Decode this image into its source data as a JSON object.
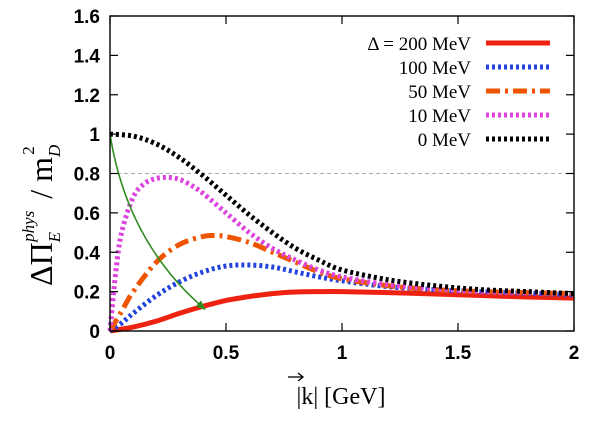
{
  "chart_data": {
    "type": "line",
    "xlabel": "|k| [GeV]",
    "ylabel": "ΔΠ_E^phys / m_D^2",
    "xlim": [
      0,
      2
    ],
    "ylim": [
      0,
      1.6
    ],
    "x_ticks": [
      "0",
      "0.5",
      "1",
      "1.5",
      "2"
    ],
    "y_ticks": [
      "0",
      "0.2",
      "0.4",
      "0.6",
      "0.8",
      "1",
      "1.2",
      "1.4",
      "1.6"
    ],
    "legend_position": "top-right",
    "reference_line": {
      "y": 0.8,
      "style": "dashed",
      "color": "#aaaaaa"
    },
    "arrow": {
      "from": [
        0.0,
        1.0
      ],
      "to": [
        0.41,
        0.11
      ],
      "color": "#2e8b1f"
    },
    "series": [
      {
        "name": "Δ = 200 MeV",
        "color": "#ee2211",
        "style": "solid",
        "x": [
          0,
          0.1,
          0.2,
          0.3,
          0.4,
          0.5,
          0.6,
          0.7,
          0.8,
          0.9,
          1.0,
          1.2,
          1.4,
          1.6,
          1.8,
          2.0
        ],
        "y": [
          0.0,
          0.02,
          0.05,
          0.09,
          0.125,
          0.155,
          0.175,
          0.19,
          0.198,
          0.2,
          0.2,
          0.195,
          0.188,
          0.18,
          0.173,
          0.167
        ]
      },
      {
        "name": "100 MeV",
        "color": "#2244dd",
        "style": "dotted",
        "x": [
          0,
          0.05,
          0.1,
          0.2,
          0.3,
          0.4,
          0.5,
          0.6,
          0.7,
          0.8,
          0.9,
          1.0,
          1.2,
          1.4,
          1.6,
          1.8,
          2.0
        ],
        "y": [
          0.0,
          0.04,
          0.09,
          0.18,
          0.25,
          0.3,
          0.33,
          0.335,
          0.325,
          0.3,
          0.275,
          0.255,
          0.225,
          0.21,
          0.2,
          0.192,
          0.185
        ]
      },
      {
        "name": "50 MeV",
        "color": "#ee5500",
        "style": "dashdot",
        "x": [
          0,
          0.05,
          0.1,
          0.2,
          0.3,
          0.4,
          0.45,
          0.5,
          0.6,
          0.7,
          0.8,
          0.9,
          1.0,
          1.2,
          1.4,
          1.6,
          1.8,
          2.0
        ],
        "y": [
          0.0,
          0.1,
          0.2,
          0.35,
          0.44,
          0.48,
          0.485,
          0.48,
          0.45,
          0.4,
          0.35,
          0.3,
          0.265,
          0.23,
          0.21,
          0.2,
          0.195,
          0.19
        ]
      },
      {
        "name": "10 MeV",
        "color": "#dd44dd",
        "style": "dotted",
        "x": [
          0,
          0.025,
          0.05,
          0.1,
          0.15,
          0.2,
          0.25,
          0.3,
          0.35,
          0.4,
          0.5,
          0.6,
          0.7,
          0.8,
          0.9,
          1.0,
          1.2,
          1.4,
          1.6,
          1.8,
          2.0
        ],
        "y": [
          0.0,
          0.3,
          0.5,
          0.68,
          0.75,
          0.775,
          0.78,
          0.77,
          0.74,
          0.7,
          0.6,
          0.5,
          0.42,
          0.36,
          0.31,
          0.275,
          0.235,
          0.215,
          0.2,
          0.195,
          0.19
        ]
      },
      {
        "name": "0 MeV",
        "color": "#000000",
        "style": "dotted",
        "x": [
          0,
          0.1,
          0.2,
          0.3,
          0.4,
          0.5,
          0.6,
          0.7,
          0.8,
          0.9,
          1.0,
          1.2,
          1.4,
          1.6,
          1.8,
          2.0
        ],
        "y": [
          1.0,
          0.99,
          0.95,
          0.88,
          0.79,
          0.69,
          0.59,
          0.5,
          0.42,
          0.36,
          0.31,
          0.26,
          0.23,
          0.21,
          0.2,
          0.19
        ]
      }
    ]
  }
}
